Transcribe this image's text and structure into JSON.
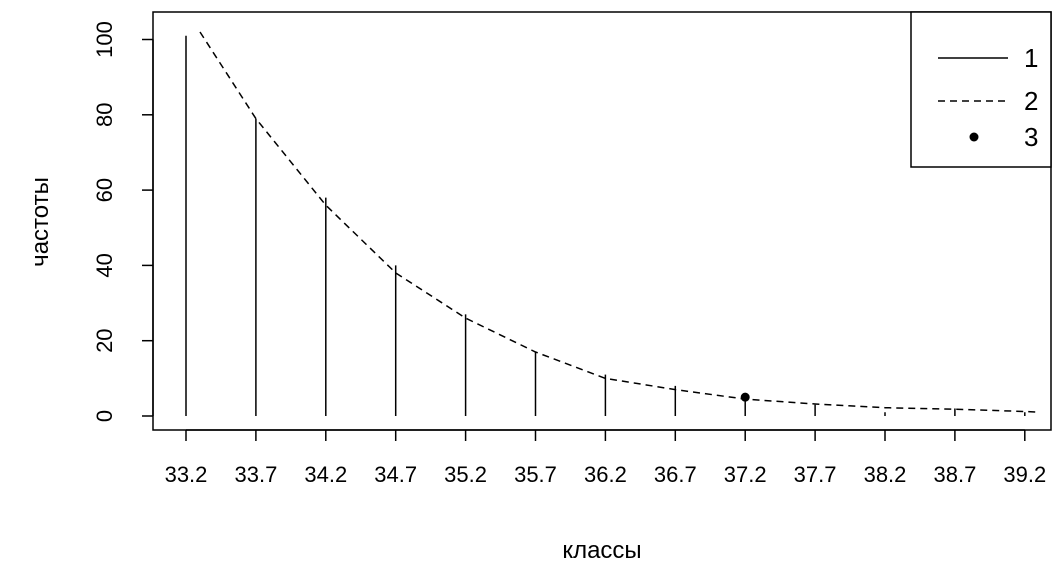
{
  "chart_data": {
    "type": "line",
    "title": "",
    "xlabel": "классы",
    "ylabel": "частоты",
    "x_ticks": [
      "33.2",
      "33.7",
      "34.2",
      "34.7",
      "35.2",
      "35.7",
      "36.2",
      "36.7",
      "37.2",
      "37.7",
      "38.2",
      "38.7",
      "39.2"
    ],
    "y_ticks": [
      "0",
      "20",
      "40",
      "60",
      "80",
      "100"
    ],
    "ylim": [
      0,
      100
    ],
    "legend": {
      "position": "top-right",
      "entries": [
        "1",
        "2",
        "3"
      ]
    },
    "series": [
      {
        "name": "1",
        "style": "vertical-lines",
        "x": [
          33.2,
          33.7,
          34.2,
          34.7,
          35.2,
          35.7,
          36.2,
          36.7,
          37.2,
          37.7,
          38.2,
          38.7,
          39.2
        ],
        "values": [
          101,
          79,
          58,
          40,
          27,
          17,
          11,
          8,
          4,
          3,
          1,
          2,
          1
        ]
      },
      {
        "name": "2",
        "style": "dashed-line",
        "x": [
          33.3,
          33.7,
          34.2,
          34.7,
          35.2,
          35.7,
          36.2,
          36.7,
          37.2,
          37.7,
          38.2,
          38.7,
          39.2,
          39.3
        ],
        "values": [
          102,
          79,
          56,
          38,
          26,
          17,
          10,
          7,
          4.5,
          3.2,
          2.2,
          1.8,
          1.2,
          1.0
        ]
      },
      {
        "name": "3",
        "style": "points",
        "x": [
          37.2
        ],
        "values": [
          5
        ]
      }
    ],
    "grid": false
  }
}
